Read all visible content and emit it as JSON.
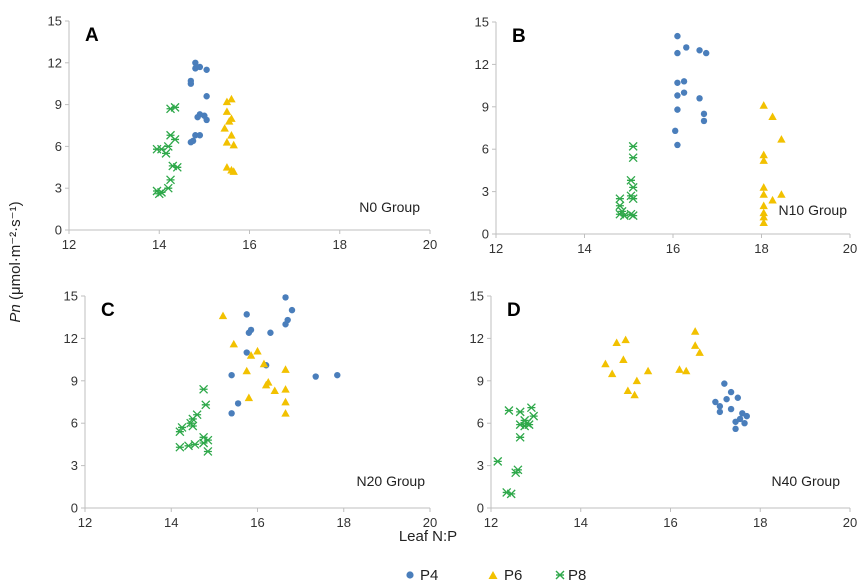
{
  "figure": {
    "xlabel": "Leaf N:P",
    "ylabel": "Pn (μmol·m⁻²·s⁻¹)",
    "ylabel_italic_part": "Pn",
    "ylabel_rest": " (μmol·m⁻²·s⁻¹)"
  },
  "legend": [
    {
      "name": "P4",
      "marker": "circle",
      "color": "#4a7ebb"
    },
    {
      "name": "P6",
      "marker": "triangle",
      "color": "#f2c100"
    },
    {
      "name": "P8",
      "marker": "asterisk",
      "color": "#2ea84a"
    }
  ],
  "chart_data": [
    {
      "type": "scatter",
      "letter": "A",
      "group_label": "N0 Group",
      "xlim": [
        12,
        20
      ],
      "xticks": [
        12,
        14,
        16,
        18,
        20
      ],
      "ylim": [
        0,
        15
      ],
      "yticks": [
        0,
        3,
        6,
        9,
        12,
        15
      ],
      "series": [
        {
          "name": "P4",
          "points": [
            [
              14.7,
              10.7
            ],
            [
              14.7,
              10.5
            ],
            [
              14.8,
              11.6
            ],
            [
              14.8,
              12.0
            ],
            [
              14.9,
              11.7
            ],
            [
              15.05,
              11.5
            ],
            [
              14.9,
              8.3
            ],
            [
              14.85,
              8.1
            ],
            [
              15.0,
              8.2
            ],
            [
              15.05,
              7.9
            ],
            [
              15.05,
              9.6
            ],
            [
              14.9,
              6.8
            ],
            [
              14.8,
              6.8
            ],
            [
              14.75,
              6.4
            ],
            [
              14.7,
              6.3
            ]
          ]
        },
        {
          "name": "P6",
          "points": [
            [
              15.5,
              9.2
            ],
            [
              15.6,
              9.4
            ],
            [
              15.5,
              8.5
            ],
            [
              15.6,
              8.0
            ],
            [
              15.55,
              7.8
            ],
            [
              15.45,
              7.3
            ],
            [
              15.6,
              6.8
            ],
            [
              15.5,
              6.3
            ],
            [
              15.65,
              6.1
            ],
            [
              15.5,
              4.5
            ],
            [
              15.6,
              4.3
            ],
            [
              15.65,
              4.2
            ]
          ]
        },
        {
          "name": "P8",
          "points": [
            [
              14.25,
              8.7
            ],
            [
              14.35,
              8.8
            ],
            [
              13.95,
              5.8
            ],
            [
              14.05,
              5.8
            ],
            [
              14.15,
              5.5
            ],
            [
              14.25,
              6.8
            ],
            [
              14.35,
              6.5
            ],
            [
              14.2,
              6.0
            ],
            [
              14.3,
              4.6
            ],
            [
              14.4,
              4.5
            ],
            [
              14.25,
              3.6
            ],
            [
              14.2,
              3.0
            ],
            [
              13.95,
              2.8
            ],
            [
              14.0,
              2.6
            ],
            [
              14.05,
              2.7
            ]
          ]
        }
      ]
    },
    {
      "type": "scatter",
      "letter": "B",
      "group_label": "N10 Group",
      "xlim": [
        12,
        20
      ],
      "xticks": [
        12,
        14,
        16,
        18,
        20
      ],
      "ylim": [
        0,
        15
      ],
      "yticks": [
        0,
        3,
        6,
        9,
        12,
        15
      ],
      "series": [
        {
          "name": "P4",
          "points": [
            [
              16.1,
              14.0
            ],
            [
              16.1,
              12.8
            ],
            [
              16.3,
              13.2
            ],
            [
              16.6,
              13.0
            ],
            [
              16.75,
              12.8
            ],
            [
              16.1,
              10.7
            ],
            [
              16.25,
              10.8
            ],
            [
              16.1,
              9.8
            ],
            [
              16.25,
              10.0
            ],
            [
              16.1,
              8.8
            ],
            [
              16.6,
              9.6
            ],
            [
              16.7,
              8.5
            ],
            [
              16.7,
              8.0
            ],
            [
              16.05,
              7.3
            ],
            [
              16.1,
              6.3
            ]
          ]
        },
        {
          "name": "P6",
          "points": [
            [
              18.05,
              9.1
            ],
            [
              18.25,
              8.3
            ],
            [
              18.45,
              6.7
            ],
            [
              18.05,
              5.6
            ],
            [
              18.05,
              5.2
            ],
            [
              18.05,
              3.3
            ],
            [
              18.05,
              2.8
            ],
            [
              18.45,
              2.8
            ],
            [
              18.25,
              2.4
            ],
            [
              18.05,
              2.0
            ],
            [
              18.05,
              1.5
            ],
            [
              18.05,
              1.2
            ],
            [
              18.05,
              0.8
            ]
          ]
        },
        {
          "name": "P8",
          "points": [
            [
              15.1,
              6.2
            ],
            [
              15.1,
              5.4
            ],
            [
              15.05,
              3.8
            ],
            [
              15.1,
              3.3
            ],
            [
              15.05,
              2.7
            ],
            [
              15.1,
              2.5
            ],
            [
              14.8,
              2.5
            ],
            [
              14.8,
              2.0
            ],
            [
              14.85,
              1.6
            ],
            [
              14.8,
              1.4
            ],
            [
              14.9,
              1.3
            ],
            [
              15.05,
              1.4
            ],
            [
              15.1,
              1.3
            ]
          ]
        }
      ]
    },
    {
      "type": "scatter",
      "letter": "C",
      "group_label": "N20 Group",
      "xlim": [
        12,
        20
      ],
      "xticks": [
        12,
        14,
        16,
        18,
        20
      ],
      "ylim": [
        0,
        15
      ],
      "yticks": [
        0,
        3,
        6,
        9,
        12,
        15
      ],
      "series": [
        {
          "name": "P4",
          "points": [
            [
              16.65,
              14.9
            ],
            [
              16.8,
              14.0
            ],
            [
              16.7,
              13.3
            ],
            [
              16.65,
              13.0
            ],
            [
              15.75,
              13.7
            ],
            [
              15.8,
              12.4
            ],
            [
              15.85,
              12.6
            ],
            [
              16.3,
              12.4
            ],
            [
              15.75,
              11.0
            ],
            [
              16.2,
              10.1
            ],
            [
              15.4,
              9.4
            ],
            [
              17.35,
              9.3
            ],
            [
              17.85,
              9.4
            ],
            [
              15.55,
              7.4
            ],
            [
              15.4,
              6.7
            ]
          ]
        },
        {
          "name": "P6",
          "points": [
            [
              15.2,
              13.6
            ],
            [
              15.45,
              11.6
            ],
            [
              16.0,
              11.1
            ],
            [
              15.85,
              10.8
            ],
            [
              15.75,
              9.7
            ],
            [
              16.15,
              10.2
            ],
            [
              16.65,
              9.8
            ],
            [
              16.2,
              8.7
            ],
            [
              16.25,
              8.9
            ],
            [
              16.4,
              8.3
            ],
            [
              16.65,
              8.4
            ],
            [
              15.8,
              7.8
            ],
            [
              16.65,
              7.5
            ],
            [
              16.65,
              6.7
            ]
          ]
        },
        {
          "name": "P8",
          "points": [
            [
              14.75,
              8.4
            ],
            [
              14.8,
              7.3
            ],
            [
              14.6,
              6.6
            ],
            [
              14.5,
              6.3
            ],
            [
              14.45,
              6.0
            ],
            [
              14.5,
              5.8
            ],
            [
              14.25,
              5.7
            ],
            [
              14.2,
              5.4
            ],
            [
              14.75,
              5.0
            ],
            [
              14.85,
              4.8
            ],
            [
              14.75,
              4.6
            ],
            [
              14.55,
              4.5
            ],
            [
              14.4,
              4.4
            ],
            [
              14.2,
              4.3
            ],
            [
              14.85,
              4.0
            ]
          ]
        }
      ]
    },
    {
      "type": "scatter",
      "letter": "D",
      "group_label": "N40 Group",
      "xlim": [
        12,
        20
      ],
      "xticks": [
        12,
        14,
        16,
        18,
        20
      ],
      "ylim": [
        0,
        15
      ],
      "yticks": [
        0,
        3,
        6,
        9,
        12,
        15
      ],
      "series": [
        {
          "name": "P4",
          "points": [
            [
              17.2,
              8.8
            ],
            [
              17.35,
              8.2
            ],
            [
              17.25,
              7.7
            ],
            [
              17.5,
              7.8
            ],
            [
              17.0,
              7.5
            ],
            [
              17.1,
              7.2
            ],
            [
              17.35,
              7.0
            ],
            [
              17.6,
              6.7
            ],
            [
              17.1,
              6.8
            ],
            [
              17.7,
              6.5
            ],
            [
              17.55,
              6.3
            ],
            [
              17.45,
              6.1
            ],
            [
              17.65,
              6.0
            ],
            [
              17.45,
              5.6
            ]
          ]
        },
        {
          "name": "P6",
          "points": [
            [
              16.55,
              12.5
            ],
            [
              16.55,
              11.5
            ],
            [
              16.65,
              11.0
            ],
            [
              15.0,
              11.9
            ],
            [
              14.8,
              11.7
            ],
            [
              14.95,
              10.5
            ],
            [
              14.55,
              10.2
            ],
            [
              14.7,
              9.5
            ],
            [
              16.2,
              9.8
            ],
            [
              16.35,
              9.7
            ],
            [
              15.5,
              9.7
            ],
            [
              15.25,
              9.0
            ],
            [
              15.05,
              8.3
            ],
            [
              15.2,
              8.0
            ]
          ]
        },
        {
          "name": "P8",
          "points": [
            [
              12.4,
              6.9
            ],
            [
              12.9,
              7.1
            ],
            [
              12.95,
              6.5
            ],
            [
              12.65,
              6.8
            ],
            [
              12.75,
              6.2
            ],
            [
              12.65,
              5.9
            ],
            [
              12.8,
              6.0
            ],
            [
              12.75,
              5.8
            ],
            [
              12.85,
              5.9
            ],
            [
              12.65,
              5.0
            ],
            [
              12.15,
              3.3
            ],
            [
              12.6,
              2.7
            ],
            [
              12.55,
              2.5
            ],
            [
              12.35,
              1.1
            ],
            [
              12.45,
              1.0
            ]
          ]
        }
      ]
    }
  ]
}
